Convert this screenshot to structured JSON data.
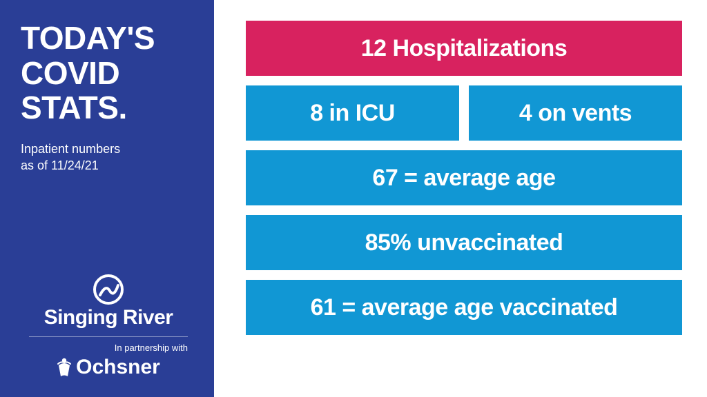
{
  "layout": {
    "left_bg": "#2a3e96",
    "right_bg": "#ffffff",
    "stat_bg_primary": "#1197d4",
    "stat_bg_accent": "#d8225f",
    "stat_text": "#ffffff",
    "left_text": "#ffffff",
    "stat_height_single": 80,
    "stat_fontsize": 34,
    "title_fontsize": 46,
    "subtitle_fontsize": 18
  },
  "title": {
    "line1": "TODAY'S",
    "line2": "COVID",
    "line3": "STATS."
  },
  "subtitle": {
    "line1": "Inpatient numbers",
    "line2": "as of 11/24/21"
  },
  "logos": {
    "singing_river": "Singing River",
    "partnership": "In partnership with",
    "ochsner": "Ochsner"
  },
  "stats": {
    "hospitalizations": "12 Hospitalizations",
    "icu": "8 in ICU",
    "vents": "4 on vents",
    "avg_age": "67 = average age",
    "unvaccinated": "85% unvaccinated",
    "avg_age_vacc": "61 = average age vaccinated"
  }
}
